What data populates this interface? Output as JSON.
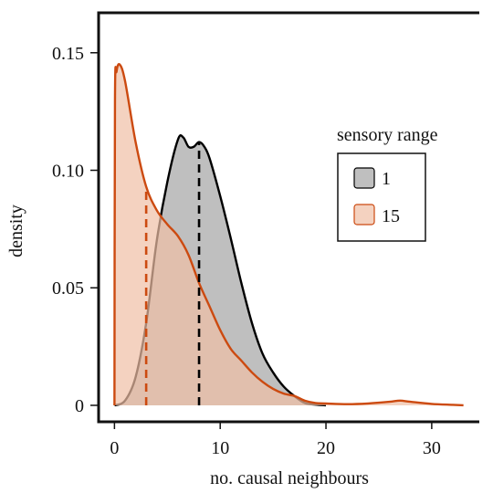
{
  "chart_data": {
    "type": "area",
    "title": "",
    "xlabel": "no. causal neighbours",
    "ylabel": "density",
    "xlim": [
      -1.5,
      34.5
    ],
    "ylim": [
      -0.007,
      0.167
    ],
    "x_ticks": [
      0,
      10,
      20,
      30
    ],
    "x_tick_labels": [
      "0",
      "10",
      "20",
      "30"
    ],
    "y_ticks": [
      0,
      0.05,
      0.1,
      0.15
    ],
    "y_tick_labels": [
      "0",
      "0.05",
      "0.10",
      "0.15"
    ],
    "grid": false,
    "legend": {
      "title": "sensory range",
      "placement": "right"
    },
    "series": [
      {
        "name": "1",
        "color": "#000000",
        "fill": "#a9a9a9",
        "fill_opacity": 0.75,
        "median": 8,
        "x": [
          0,
          1,
          2,
          3,
          4,
          5,
          6,
          6.5,
          7,
          7.5,
          8,
          8.5,
          9,
          10,
          11,
          12,
          13,
          14,
          15,
          16,
          17,
          18,
          19,
          20
        ],
        "y": [
          0,
          0.002,
          0.012,
          0.035,
          0.07,
          0.095,
          0.113,
          0.114,
          0.11,
          0.11,
          0.112,
          0.11,
          0.105,
          0.089,
          0.071,
          0.052,
          0.035,
          0.022,
          0.014,
          0.008,
          0.004,
          0.001,
          0.0003,
          0
        ]
      },
      {
        "name": "15",
        "color": "#cc4a10",
        "fill": "#f0bfa5",
        "fill_opacity": 0.7,
        "median": 3,
        "x": [
          0,
          0.05,
          0.2,
          0.5,
          1,
          2,
          3,
          4,
          5,
          6,
          7,
          8,
          9,
          10,
          11,
          12,
          13,
          14,
          15,
          16,
          17,
          18,
          19,
          20,
          22,
          24,
          26,
          27,
          28,
          30,
          32,
          33
        ],
        "y": [
          0,
          0.13,
          0.142,
          0.145,
          0.138,
          0.112,
          0.093,
          0.083,
          0.077,
          0.072,
          0.064,
          0.052,
          0.042,
          0.032,
          0.024,
          0.019,
          0.014,
          0.01,
          0.007,
          0.005,
          0.004,
          0.002,
          0.001,
          0.0008,
          0.0005,
          0.0008,
          0.0015,
          0.002,
          0.0015,
          0.0006,
          0.0002,
          0
        ]
      }
    ]
  }
}
